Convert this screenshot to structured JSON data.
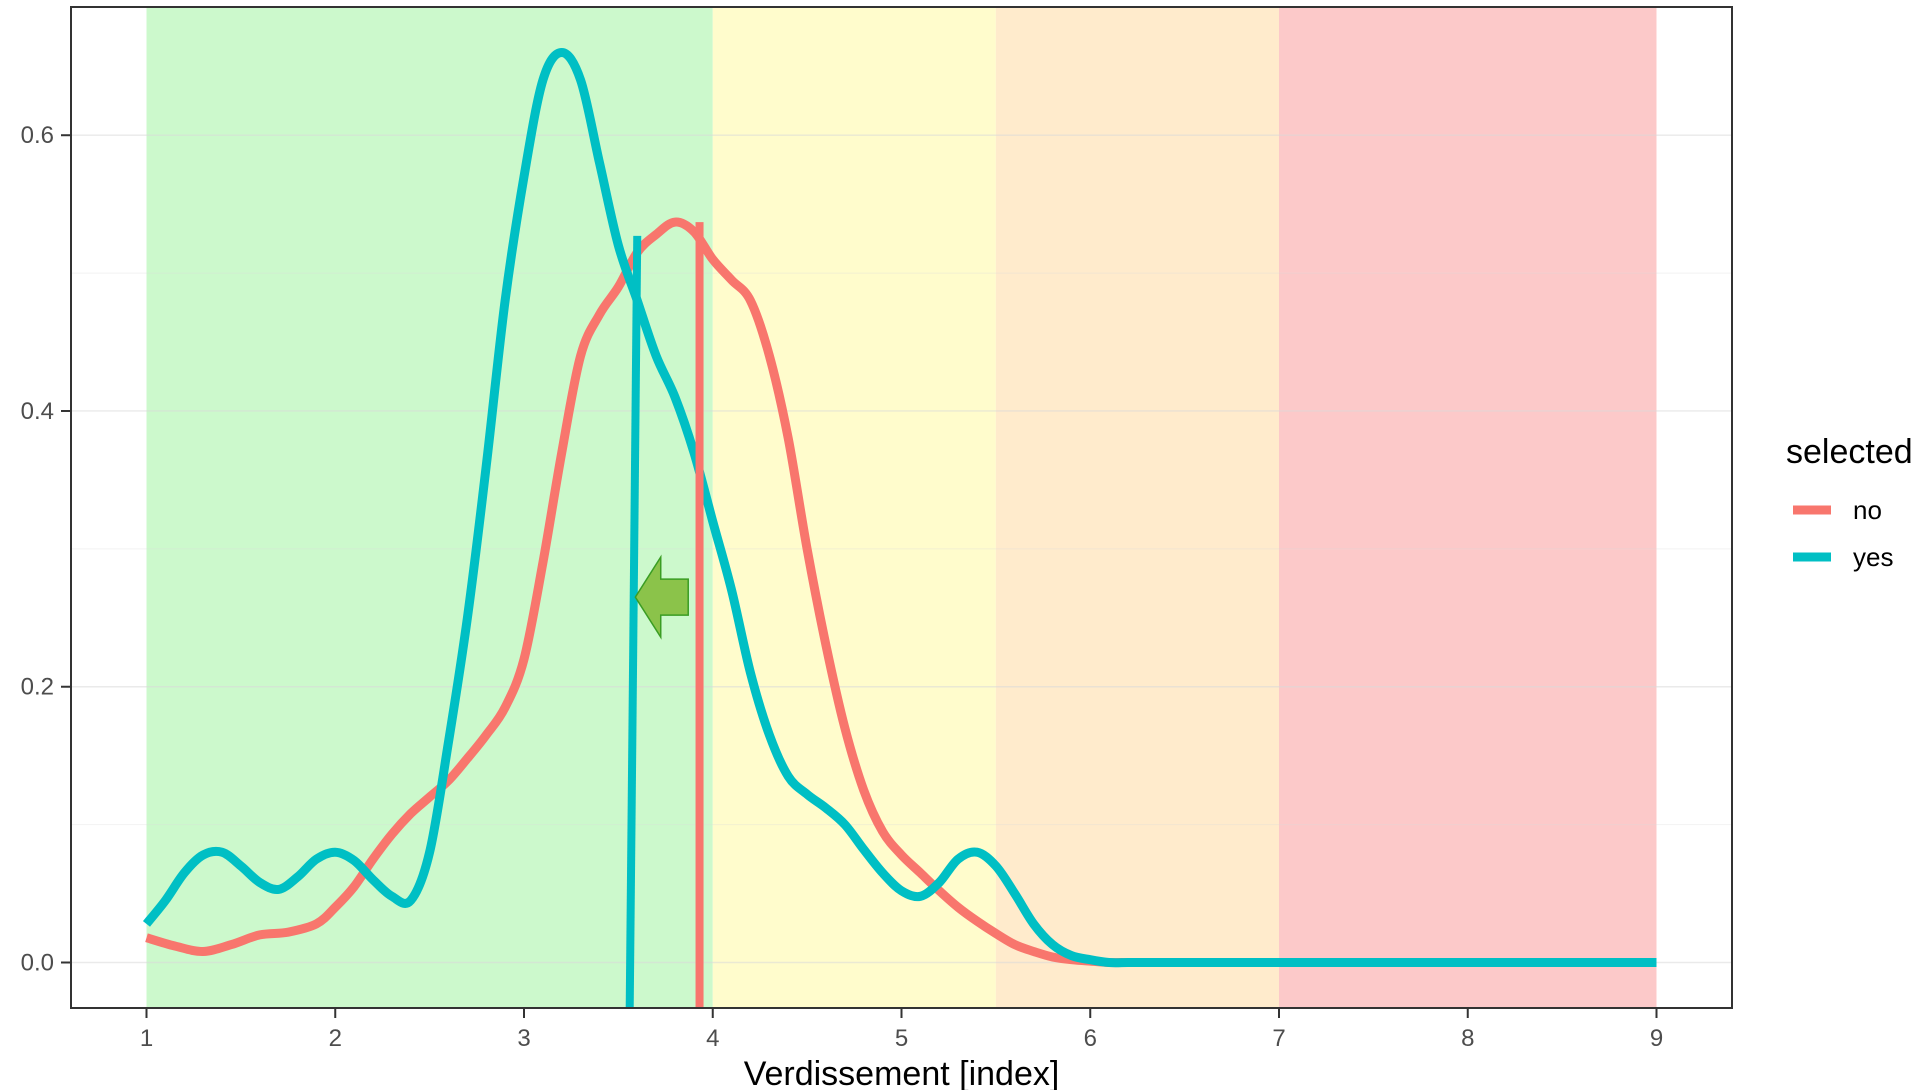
{
  "chart_data": {
    "type": "line",
    "xlabel": "Verdissement [index]",
    "ylabel": "",
    "xlim": [
      0.6,
      9.4
    ],
    "ylim": [
      -0.033,
      0.693
    ],
    "x_ticks": [
      1,
      2,
      3,
      4,
      5,
      6,
      7,
      8,
      9
    ],
    "y_ticks": [
      0.0,
      0.2,
      0.4,
      0.6
    ],
    "y_tick_labels": [
      "0.0",
      "0.2",
      "0.4",
      "0.6"
    ],
    "grid": true,
    "background_bands": [
      {
        "from": 1.0,
        "to": 4.0,
        "color": "#ccf9cc"
      },
      {
        "from": 4.0,
        "to": 5.5,
        "color": "#fffccc"
      },
      {
        "from": 5.5,
        "to": 7.0,
        "color": "#ffebcc"
      },
      {
        "from": 7.0,
        "to": 9.0,
        "color": "#fcc9c9"
      }
    ],
    "legend": {
      "title": "selected",
      "position": "right"
    },
    "series": [
      {
        "name": "no",
        "color": "#f8766d",
        "x": [
          1.0,
          1.15,
          1.3,
          1.45,
          1.6,
          1.75,
          1.9,
          2.0,
          2.1,
          2.2,
          2.3,
          2.4,
          2.5,
          2.6,
          2.7,
          2.8,
          2.9,
          3.0,
          3.1,
          3.2,
          3.3,
          3.4,
          3.5,
          3.6,
          3.7,
          3.8,
          3.9,
          4.0,
          4.1,
          4.2,
          4.3,
          4.4,
          4.5,
          4.6,
          4.7,
          4.8,
          4.9,
          5.0,
          5.1,
          5.2,
          5.3,
          5.4,
          5.5,
          5.6,
          5.7,
          5.8,
          5.9,
          6.0,
          6.1,
          6.2,
          6.3,
          6.5,
          7.0,
          8.0,
          9.0
        ],
        "y": [
          0.018,
          0.012,
          0.008,
          0.013,
          0.02,
          0.022,
          0.028,
          0.04,
          0.055,
          0.075,
          0.093,
          0.108,
          0.12,
          0.132,
          0.148,
          0.165,
          0.185,
          0.22,
          0.29,
          0.37,
          0.44,
          0.47,
          0.49,
          0.515,
          0.528,
          0.537,
          0.53,
          0.51,
          0.495,
          0.48,
          0.44,
          0.38,
          0.3,
          0.23,
          0.17,
          0.125,
          0.095,
          0.078,
          0.065,
          0.052,
          0.04,
          0.03,
          0.021,
          0.013,
          0.008,
          0.004,
          0.002,
          0.001,
          0.0,
          0.0,
          0.0,
          0.0,
          0.0,
          0.0,
          0.0
        ]
      },
      {
        "name": "yes",
        "color": "#00bfc4",
        "x": [
          1.0,
          1.1,
          1.2,
          1.3,
          1.4,
          1.5,
          1.6,
          1.7,
          1.8,
          1.9,
          2.0,
          2.1,
          2.2,
          2.3,
          2.4,
          2.5,
          2.6,
          2.7,
          2.8,
          2.9,
          3.0,
          3.1,
          3.2,
          3.3,
          3.4,
          3.5,
          3.6,
          3.7,
          3.8,
          3.9,
          4.0,
          4.1,
          4.2,
          4.3,
          4.4,
          4.5,
          4.6,
          4.7,
          4.8,
          4.9,
          5.0,
          5.1,
          5.2,
          5.3,
          5.4,
          5.5,
          5.6,
          5.7,
          5.8,
          5.9,
          6.0,
          6.1,
          6.2,
          6.3,
          6.5,
          7.0,
          8.0,
          9.0
        ],
        "y": [
          0.028,
          0.045,
          0.065,
          0.078,
          0.08,
          0.07,
          0.058,
          0.053,
          0.062,
          0.075,
          0.08,
          0.074,
          0.06,
          0.048,
          0.045,
          0.08,
          0.16,
          0.25,
          0.36,
          0.48,
          0.57,
          0.64,
          0.66,
          0.64,
          0.58,
          0.52,
          0.48,
          0.44,
          0.41,
          0.37,
          0.32,
          0.27,
          0.21,
          0.165,
          0.135,
          0.122,
          0.112,
          0.1,
          0.082,
          0.065,
          0.052,
          0.048,
          0.058,
          0.075,
          0.08,
          0.07,
          0.05,
          0.028,
          0.013,
          0.005,
          0.002,
          0.0,
          0.0,
          0.0,
          0.0,
          0.0,
          0.0,
          0.0
        ]
      }
    ],
    "vlines": [
      {
        "series": "yes",
        "x_top": 3.6,
        "x_bottom": 3.56,
        "y_top": 0.527,
        "color": "#00bfc4"
      },
      {
        "series": "no",
        "x": 3.93,
        "y_top": 0.537,
        "color": "#f8766d"
      }
    ],
    "annotations": [
      {
        "type": "arrow",
        "direction": "left",
        "x_from": 3.87,
        "x_to": 3.59,
        "y": 0.265,
        "color": "#8bc34a"
      }
    ]
  }
}
